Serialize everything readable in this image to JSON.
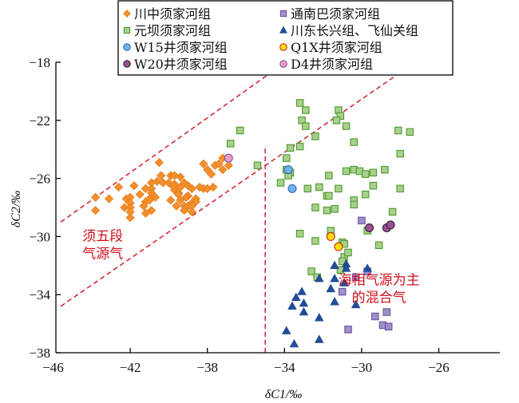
{
  "chart_data": {
    "type": "scatter",
    "title": "",
    "xlabel": "δC1/‰",
    "ylabel": "δC2/‰",
    "xlim": [
      -46,
      -26
    ],
    "ylim": [
      -38,
      -18
    ],
    "xticks": [
      -46,
      -42,
      -38,
      -34,
      -30,
      -26
    ],
    "yticks": [
      -18,
      -22,
      -26,
      -30,
      -34,
      -38
    ],
    "xtick_labels": [
      "−46",
      "−42",
      "−38",
      "−34",
      "−30",
      "−26"
    ],
    "ytick_labels": [
      "−18",
      "−22",
      "−26",
      "−30",
      "−34",
      "−38"
    ],
    "grid": false,
    "legend_position": "top",
    "series": [
      {
        "name": "川中须家河组",
        "marker": "diamond",
        "color": "#f28e2b",
        "edge": "#e07a1c",
        "points": [
          [
            -43.8,
            -27.3
          ],
          [
            -43.8,
            -28.2
          ],
          [
            -43.1,
            -27.4
          ],
          [
            -42.6,
            -26.6
          ],
          [
            -41.8,
            -26.5
          ],
          [
            -42.2,
            -27.4
          ],
          [
            -42.0,
            -27.3
          ],
          [
            -42.3,
            -28.0
          ],
          [
            -42.0,
            -27.7
          ],
          [
            -42.0,
            -28.0
          ],
          [
            -42.0,
            -28.3
          ],
          [
            -42.0,
            -28.7
          ],
          [
            -41.5,
            -27.1
          ],
          [
            -41.2,
            -26.7
          ],
          [
            -40.9,
            -26.3
          ],
          [
            -40.6,
            -26.2
          ],
          [
            -40.4,
            -25.8
          ],
          [
            -40.5,
            -24.9
          ],
          [
            -40.9,
            -26.7
          ],
          [
            -40.9,
            -27.0
          ],
          [
            -41.0,
            -27.4
          ],
          [
            -40.7,
            -27.3
          ],
          [
            -41.2,
            -27.6
          ],
          [
            -41.3,
            -27.9
          ],
          [
            -41.0,
            -27.5
          ],
          [
            -40.9,
            -28.2
          ],
          [
            -41.2,
            -28.4
          ],
          [
            -39.9,
            -27.5
          ],
          [
            -39.7,
            -26.4
          ],
          [
            -40.3,
            -26.3
          ],
          [
            -39.9,
            -25.8
          ],
          [
            -39.7,
            -25.8
          ],
          [
            -39.4,
            -25.9
          ],
          [
            -40.0,
            -26.3
          ],
          [
            -39.7,
            -26.8
          ],
          [
            -39.0,
            -26.5
          ],
          [
            -38.8,
            -26.7
          ],
          [
            -39.4,
            -26.6
          ],
          [
            -38.4,
            -26.6
          ],
          [
            -38.2,
            -26.7
          ],
          [
            -38.0,
            -26.7
          ],
          [
            -37.7,
            -26.6
          ],
          [
            -39.8,
            -26.5
          ],
          [
            -39.5,
            -27.0
          ],
          [
            -39.5,
            -27.1
          ],
          [
            -39.2,
            -26.3
          ],
          [
            -39.0,
            -27.2
          ],
          [
            -39.1,
            -27.3
          ],
          [
            -39.4,
            -27.5
          ],
          [
            -38.6,
            -27.4
          ],
          [
            -38.8,
            -27.7
          ],
          [
            -39.6,
            -27.9
          ],
          [
            -39.2,
            -27.9
          ],
          [
            -39.0,
            -27.9
          ],
          [
            -38.8,
            -27.9
          ],
          [
            -38.6,
            -27.6
          ],
          [
            -39.2,
            -28.2
          ],
          [
            -38.8,
            -28.3
          ],
          [
            -37.2,
            -24.6
          ],
          [
            -38.2,
            -25.0
          ],
          [
            -38.0,
            -25.4
          ],
          [
            -37.6,
            -25.1
          ],
          [
            -37.4,
            -25.0
          ],
          [
            -36.9,
            -25.1
          ],
          [
            -37.2,
            -25.4
          ],
          [
            -37.8,
            -25.7
          ]
        ]
      },
      {
        "name": "元坝须家河组",
        "marker": "square",
        "color": "#a8d08d",
        "edge": "#4e9a2a",
        "points": [
          [
            -36.3,
            -22.7
          ],
          [
            -36.8,
            -23.6
          ],
          [
            -35.4,
            -25.1
          ],
          [
            -33.9,
            -24.6
          ],
          [
            -33.2,
            -20.8
          ],
          [
            -32.9,
            -21.3
          ],
          [
            -33.1,
            -22.0
          ],
          [
            -32.9,
            -22.4
          ],
          [
            -32.4,
            -23.1
          ],
          [
            -33.7,
            -23.9
          ],
          [
            -33.2,
            -23.8
          ],
          [
            -31.2,
            -21.3
          ],
          [
            -31.1,
            -21.7
          ],
          [
            -31.3,
            -22.0
          ],
          [
            -30.8,
            -22.4
          ],
          [
            -30.4,
            -23.5
          ],
          [
            -28.1,
            -22.7
          ],
          [
            -27.5,
            -22.8
          ],
          [
            -33.9,
            -25.4
          ],
          [
            -33.7,
            -25.6
          ],
          [
            -33.8,
            -25.8
          ],
          [
            -34.2,
            -26.3
          ],
          [
            -31.7,
            -25.8
          ],
          [
            -32.2,
            -26.6
          ],
          [
            -32.8,
            -26.7
          ],
          [
            -31.2,
            -26.7
          ],
          [
            -31.8,
            -27.2
          ],
          [
            -31.7,
            -27.2
          ],
          [
            -32.4,
            -28.0
          ],
          [
            -31.8,
            -28.2
          ],
          [
            -31.4,
            -28.1
          ],
          [
            -30.8,
            -25.5
          ],
          [
            -30.4,
            -25.4
          ],
          [
            -30.1,
            -25.5
          ],
          [
            -29.8,
            -25.7
          ],
          [
            -29.4,
            -25.6
          ],
          [
            -28.8,
            -25.4
          ],
          [
            -28.0,
            -24.3
          ],
          [
            -28.0,
            -26.7
          ],
          [
            -29.4,
            -26.5
          ],
          [
            -29.8,
            -27.1
          ],
          [
            -30.4,
            -27.5
          ],
          [
            -30.4,
            -27.8
          ],
          [
            -33.2,
            -29.8
          ],
          [
            -32.4,
            -30.3
          ],
          [
            -31.6,
            -29.6
          ],
          [
            -29.7,
            -29.6
          ],
          [
            -31.0,
            -30.4
          ],
          [
            -30.9,
            -30.5
          ],
          [
            -30.9,
            -31.4
          ],
          [
            -31.0,
            -31.7
          ],
          [
            -31.1,
            -32.3
          ],
          [
            -32.6,
            -32.4
          ],
          [
            -32.3,
            -32.8
          ],
          [
            -30.7,
            -31.1
          ],
          [
            -29.1,
            -30.6
          ],
          [
            -28.4,
            -28.3
          ]
        ]
      },
      {
        "name": "通南巴须家河组",
        "marker": "square",
        "color": "#9e90cc",
        "edge": "#6a4f9a",
        "points": [
          [
            -30.0,
            -28.9
          ],
          [
            -29.7,
            -32.4
          ],
          [
            -30.3,
            -32.8
          ],
          [
            -31.0,
            -33.8
          ],
          [
            -30.7,
            -36.4
          ],
          [
            -28.7,
            -35.2
          ],
          [
            -29.3,
            -35.5
          ],
          [
            -28.9,
            -36.1
          ],
          [
            -28.6,
            -36.2
          ]
        ]
      },
      {
        "name": "川东长兴组、飞仙关组",
        "marker": "triangle",
        "color": "#1f4e9a",
        "edge": "#1a3f80",
        "points": [
          [
            -31.4,
            -32.0
          ],
          [
            -30.8,
            -31.9
          ],
          [
            -30.8,
            -32.2
          ],
          [
            -29.7,
            -32.2
          ],
          [
            -32.2,
            -32.9
          ],
          [
            -31.4,
            -32.9
          ],
          [
            -30.9,
            -33.2
          ],
          [
            -31.6,
            -33.6
          ],
          [
            -33.1,
            -33.8
          ],
          [
            -33.4,
            -34.2
          ],
          [
            -33.0,
            -34.6
          ],
          [
            -33.6,
            -34.8
          ],
          [
            -33.0,
            -35.2
          ],
          [
            -31.4,
            -34.5
          ],
          [
            -30.3,
            -34.7
          ],
          [
            -32.2,
            -35.6
          ],
          [
            -33.9,
            -36.5
          ],
          [
            -33.5,
            -37.4
          ],
          [
            -32.2,
            -37.1
          ]
        ]
      },
      {
        "name": "W15井须家河组",
        "marker": "circle",
        "color": "#6fb3f0",
        "edge": "#2a5fa0",
        "points": [
          [
            -33.8,
            -25.4
          ],
          [
            -33.6,
            -26.7
          ]
        ]
      },
      {
        "name": "Q1X井须家河组",
        "marker": "circle",
        "color": "#ffe100",
        "edge": "#d0101c",
        "points": [
          [
            -31.6,
            -30.0
          ],
          [
            -31.2,
            -30.7
          ]
        ]
      },
      {
        "name": "W20井须家河组",
        "marker": "circle",
        "color": "#9b4f96",
        "edge": "#222222",
        "points": [
          [
            -29.6,
            -29.4
          ],
          [
            -28.7,
            -29.4
          ],
          [
            -28.5,
            -29.2
          ]
        ]
      },
      {
        "name": "D4井须家河组",
        "marker": "circle",
        "color": "#f29ac4",
        "edge": "#6a4f9a",
        "points": [
          [
            -36.9,
            -24.6
          ]
        ]
      }
    ],
    "reference_lines": [
      {
        "name": "upper-boundary",
        "style": "dashed",
        "color": "#d0101c",
        "points": [
          [
            -45.6,
            -29.0
          ],
          [
            -34.9,
            -18.9
          ]
        ]
      },
      {
        "name": "lower-boundary",
        "style": "dashed",
        "color": "#d0101c",
        "points": [
          [
            -45.6,
            -34.8
          ],
          [
            -28.2,
            -18.9
          ]
        ]
      },
      {
        "name": "c1-cutoff",
        "style": "dashed",
        "color": "#d0101c",
        "points": [
          [
            -35.0,
            -38.0
          ],
          [
            -35.0,
            -23.7
          ]
        ]
      }
    ],
    "annotations": [
      {
        "text": [
          "须五段",
          "气源气"
        ],
        "color": "#d0101c",
        "at": [
          -44.5,
          -30.5
        ]
      },
      {
        "text": [
          "海相气源为主",
          "的混合气"
        ],
        "color": "#d0101c",
        "at": [
          -29.1,
          -33.3
        ]
      }
    ]
  }
}
